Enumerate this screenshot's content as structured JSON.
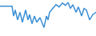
{
  "chart_data": {
    "type": "line",
    "color": "#3a8fd6",
    "tick_labels": false,
    "grid": false,
    "x": [
      0,
      15,
      17,
      19,
      22,
      25,
      28,
      32,
      35,
      37,
      40,
      43,
      46,
      50,
      55,
      58,
      60,
      62,
      66,
      70,
      74,
      78,
      82,
      85,
      88,
      91,
      95,
      98,
      102,
      105,
      108,
      112,
      116,
      120
    ],
    "values": [
      38,
      38,
      25,
      33,
      20,
      30,
      17,
      33,
      20,
      27,
      15,
      25,
      17,
      23,
      10,
      25,
      20,
      30,
      35,
      40,
      37,
      42,
      39,
      43,
      35,
      40,
      30,
      37,
      25,
      35,
      33,
      20,
      27,
      30
    ],
    "xlim": [
      0,
      120
    ],
    "ylim": [
      0,
      45
    ]
  }
}
